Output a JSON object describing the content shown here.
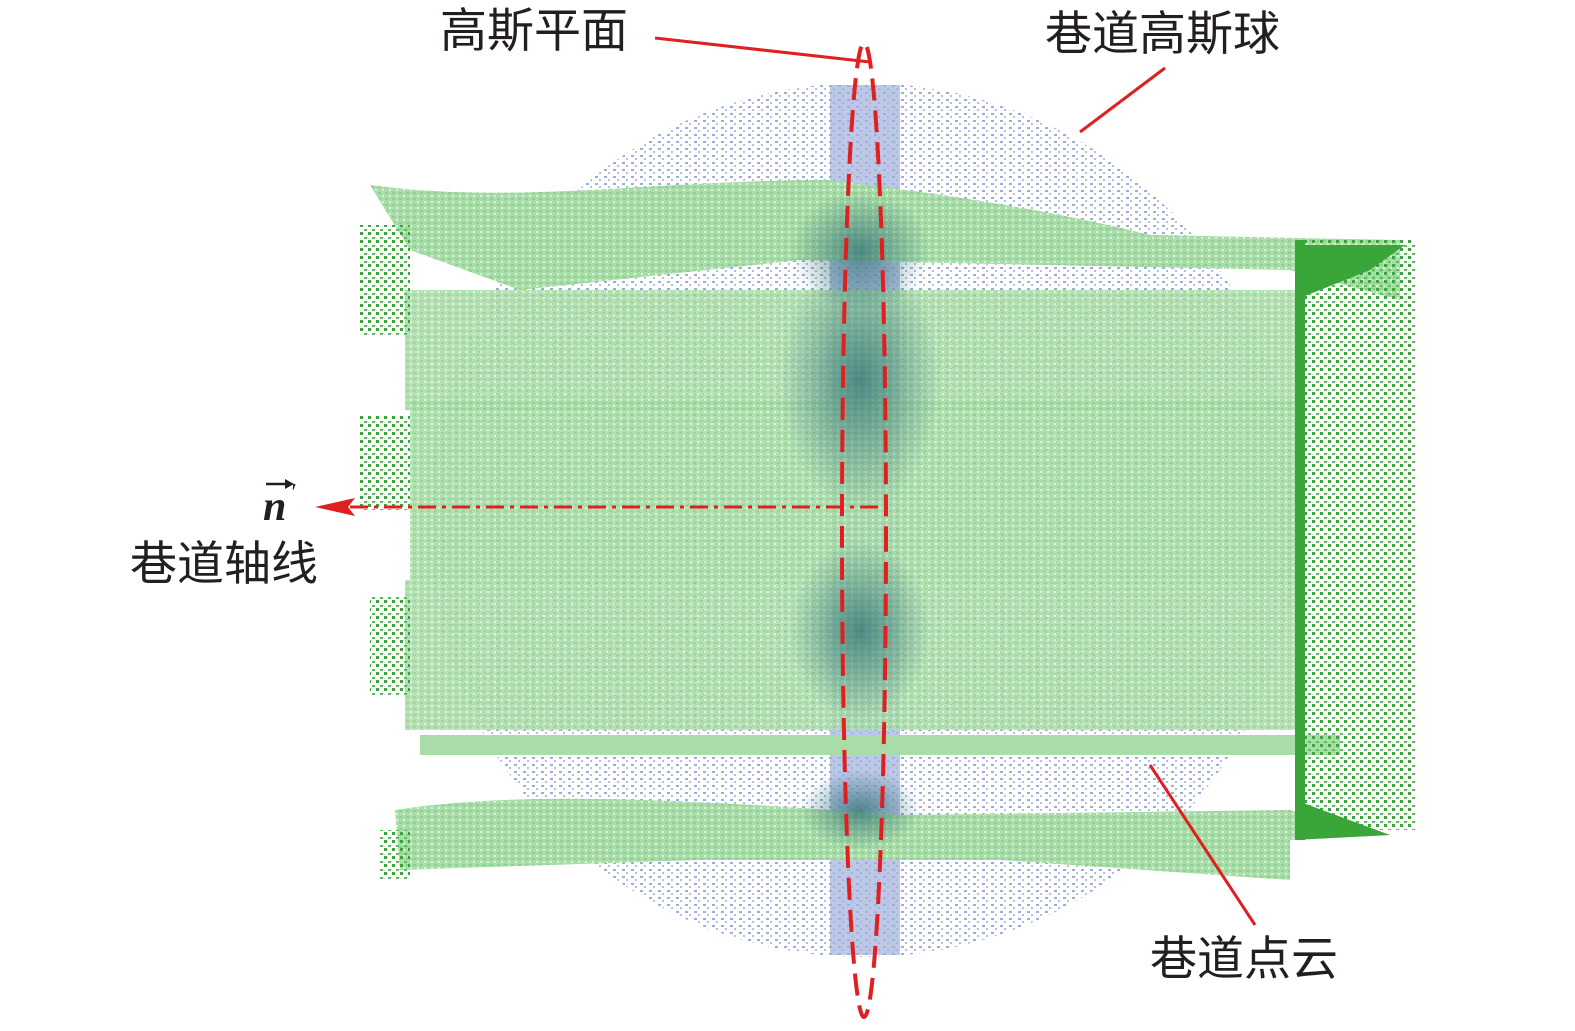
{
  "labels": {
    "gauss_plane": "高斯平面",
    "gauss_sphere": "巷道高斯球",
    "axis_label": "巷道轴线",
    "point_cloud": "巷道点云"
  },
  "vector": {
    "symbol": "n",
    "prime": "′"
  }
}
